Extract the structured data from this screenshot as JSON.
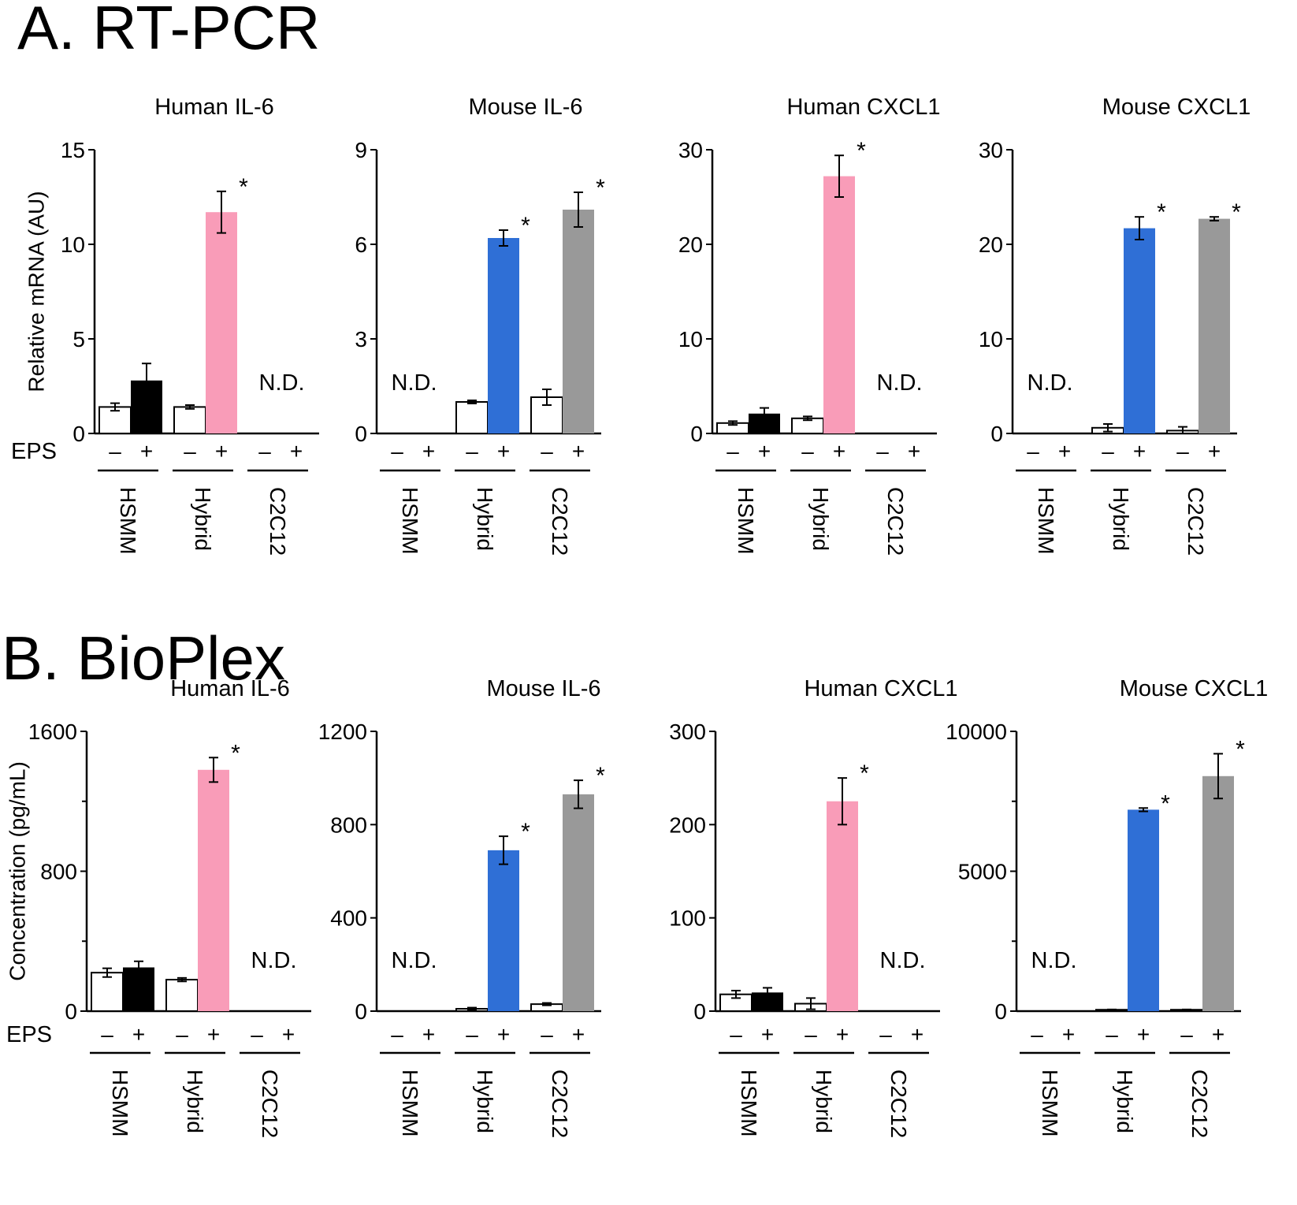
{
  "sections": [
    {
      "title": "A. RT-PCR",
      "ylabel": "Relative mRNA (AU)",
      "eps_label": "EPS",
      "panels": [
        {
          "title": "Human IL-6",
          "ylim": [
            0,
            15
          ],
          "ticks": [
            "0",
            "5",
            "10",
            "15"
          ],
          "chart_data": {
            "type": "bar",
            "groups": [
              "HSMM",
              "Hybrid",
              "C2C12"
            ],
            "eps": [
              "–",
              "+"
            ],
            "series": [
              {
                "name": "HSMM",
                "values": [
                  1.4,
                  2.8
                ],
                "err": [
                  0.2,
                  0.9
                ],
                "star": [
                  false,
                  false
                ],
                "nd": false
              },
              {
                "name": "Hybrid",
                "values": [
                  1.4,
                  11.7
                ],
                "err": [
                  0.1,
                  1.1
                ],
                "star": [
                  false,
                  true
                ],
                "nd": false
              },
              {
                "name": "C2C12",
                "values": [
                  null,
                  null
                ],
                "err": [
                  0,
                  0
                ],
                "star": [
                  false,
                  false
                ],
                "nd": true
              }
            ]
          }
        },
        {
          "title": "Mouse IL-6",
          "ylim": [
            0,
            9
          ],
          "ticks": [
            "0",
            "3",
            "6",
            "9"
          ],
          "chart_data": {
            "type": "bar",
            "groups": [
              "HSMM",
              "Hybrid",
              "C2C12"
            ],
            "eps": [
              "–",
              "+"
            ],
            "series": [
              {
                "name": "HSMM",
                "values": [
                  null,
                  null
                ],
                "err": [
                  0,
                  0
                ],
                "star": [
                  false,
                  false
                ],
                "nd": true
              },
              {
                "name": "Hybrid",
                "values": [
                  1.0,
                  6.2
                ],
                "err": [
                  0.05,
                  0.25
                ],
                "star": [
                  false,
                  true
                ],
                "nd": false
              },
              {
                "name": "C2C12",
                "values": [
                  1.15,
                  7.1
                ],
                "err": [
                  0.25,
                  0.55
                ],
                "star": [
                  false,
                  true
                ],
                "nd": false
              }
            ]
          }
        },
        {
          "title": "Human CXCL1",
          "ylim": [
            0,
            30
          ],
          "ticks": [
            "0",
            "10",
            "20",
            "30"
          ],
          "chart_data": {
            "type": "bar",
            "groups": [
              "HSMM",
              "Hybrid",
              "C2C12"
            ],
            "eps": [
              "–",
              "+"
            ],
            "series": [
              {
                "name": "HSMM",
                "values": [
                  1.1,
                  2.1
                ],
                "err": [
                  0.2,
                  0.6
                ],
                "star": [
                  false,
                  false
                ],
                "nd": false
              },
              {
                "name": "Hybrid",
                "values": [
                  1.6,
                  27.2
                ],
                "err": [
                  0.2,
                  2.2
                ],
                "star": [
                  false,
                  true
                ],
                "nd": false
              },
              {
                "name": "C2C12",
                "values": [
                  null,
                  null
                ],
                "err": [
                  0,
                  0
                ],
                "star": [
                  false,
                  false
                ],
                "nd": true
              }
            ]
          }
        },
        {
          "title": "Mouse CXCL1",
          "ylim": [
            0,
            30
          ],
          "ticks": [
            "0",
            "10",
            "20",
            "30"
          ],
          "chart_data": {
            "type": "bar",
            "groups": [
              "HSMM",
              "Hybrid",
              "C2C12"
            ],
            "eps": [
              "–",
              "+"
            ],
            "series": [
              {
                "name": "HSMM",
                "values": [
                  null,
                  null
                ],
                "err": [
                  0,
                  0
                ],
                "star": [
                  false,
                  false
                ],
                "nd": true
              },
              {
                "name": "Hybrid",
                "values": [
                  0.6,
                  21.7
                ],
                "err": [
                  0.4,
                  1.2
                ],
                "star": [
                  false,
                  true
                ],
                "nd": false
              },
              {
                "name": "C2C12",
                "values": [
                  0.3,
                  22.7
                ],
                "err": [
                  0.4,
                  0.2
                ],
                "star": [
                  false,
                  true
                ],
                "nd": false
              }
            ]
          }
        }
      ]
    },
    {
      "title": "B.  BioPlex",
      "ylabel": "Concentration (pg/mL)",
      "eps_label": "EPS",
      "panels": [
        {
          "title": "Human IL-6",
          "ylim": [
            0,
            1600
          ],
          "ticks": [
            "0",
            "800",
            "1600"
          ],
          "minor": [
            400,
            1200
          ],
          "chart_data": {
            "type": "bar",
            "groups": [
              "HSMM",
              "Hybrid",
              "C2C12"
            ],
            "eps": [
              "–",
              "+"
            ],
            "series": [
              {
                "name": "HSMM",
                "values": [
                  220,
                  250
                ],
                "err": [
                  25,
                  35
                ],
                "star": [
                  false,
                  false
                ],
                "nd": false
              },
              {
                "name": "Hybrid",
                "values": [
                  180,
                  1380
                ],
                "err": [
                  10,
                  70
                ],
                "star": [
                  false,
                  true
                ],
                "nd": false
              },
              {
                "name": "C2C12",
                "values": [
                  null,
                  null
                ],
                "err": [
                  0,
                  0
                ],
                "star": [
                  false,
                  false
                ],
                "nd": true
              }
            ]
          }
        },
        {
          "title": "Mouse IL-6",
          "ylim": [
            0,
            1200
          ],
          "ticks": [
            "0",
            "400",
            "800",
            "1200"
          ],
          "chart_data": {
            "type": "bar",
            "groups": [
              "HSMM",
              "Hybrid",
              "C2C12"
            ],
            "eps": [
              "–",
              "+"
            ],
            "series": [
              {
                "name": "HSMM",
                "values": [
                  null,
                  null
                ],
                "err": [
                  0,
                  0
                ],
                "star": [
                  false,
                  false
                ],
                "nd": true
              },
              {
                "name": "Hybrid",
                "values": [
                  10,
                  690
                ],
                "err": [
                  5,
                  60
                ],
                "star": [
                  false,
                  true
                ],
                "nd": false
              },
              {
                "name": "C2C12",
                "values": [
                  30,
                  930
                ],
                "err": [
                  5,
                  60
                ],
                "star": [
                  false,
                  true
                ],
                "nd": false
              }
            ]
          }
        },
        {
          "title": "Human CXCL1",
          "ylim": [
            0,
            300
          ],
          "ticks": [
            "0",
            "100",
            "200",
            "300"
          ],
          "chart_data": {
            "type": "bar",
            "groups": [
              "HSMM",
              "Hybrid",
              "C2C12"
            ],
            "eps": [
              "–",
              "+"
            ],
            "series": [
              {
                "name": "HSMM",
                "values": [
                  18,
                  20
                ],
                "err": [
                  4,
                  5
                ],
                "star": [
                  false,
                  false
                ],
                "nd": false
              },
              {
                "name": "Hybrid",
                "values": [
                  8,
                  225
                ],
                "err": [
                  6,
                  25
                ],
                "star": [
                  false,
                  true
                ],
                "nd": false
              },
              {
                "name": "C2C12",
                "values": [
                  null,
                  null
                ],
                "err": [
                  0,
                  0
                ],
                "star": [
                  false,
                  false
                ],
                "nd": true
              }
            ]
          }
        },
        {
          "title": "Mouse CXCL1",
          "ylim": [
            0,
            10000
          ],
          "ticks": [
            "0",
            "5000",
            "10000"
          ],
          "minor": [
            2500,
            7500
          ],
          "chart_data": {
            "type": "bar",
            "groups": [
              "HSMM",
              "Hybrid",
              "C2C12"
            ],
            "eps": [
              "–",
              "+"
            ],
            "series": [
              {
                "name": "HSMM",
                "values": [
                  null,
                  null
                ],
                "err": [
                  0,
                  0
                ],
                "star": [
                  false,
                  false
                ],
                "nd": true
              },
              {
                "name": "Hybrid",
                "values": [
                  50,
                  7200
                ],
                "err": [
                  10,
                  60
                ],
                "star": [
                  false,
                  true
                ],
                "nd": false
              },
              {
                "name": "C2C12",
                "values": [
                  50,
                  8400
                ],
                "err": [
                  10,
                  800
                ],
                "star": [
                  false,
                  true
                ],
                "nd": false
              }
            ]
          }
        }
      ]
    }
  ],
  "colors": {
    "minus": "#ffffff",
    "hsmm_plus": "#000000",
    "human_plus": "#f99cb8",
    "mouse_hybrid": "#2f6fd6",
    "mouse_c2c12": "#999999",
    "line": "#000000"
  },
  "nd_label": "N.D.",
  "star_label": "*"
}
